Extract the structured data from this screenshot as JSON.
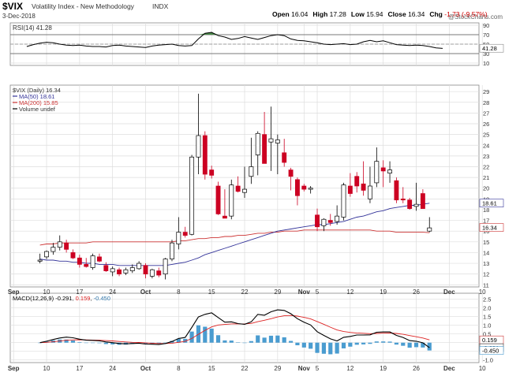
{
  "header": {
    "symbol": "$VIX",
    "name": "Volatility Index - New Methodology",
    "exchange": "INDX",
    "date": "3-Dec-2018",
    "brand": "@StockCharts.com",
    "ohlc": [
      {
        "label": "Open",
        "value": "16.04"
      },
      {
        "label": "High",
        "value": "17.28"
      },
      {
        "label": "Low",
        "value": "15.94"
      },
      {
        "label": "Close",
        "value": "16.34"
      },
      {
        "label": "Chg",
        "value": "-1.73 (-9.57%)",
        "color": "#cc0000"
      }
    ]
  },
  "colors": {
    "up": "#ffffff",
    "down": "#cc0022",
    "ma50": "#333399",
    "ma200": "#cc3333",
    "macd": "#000000",
    "signal": "#dd2222",
    "hist": "#4a9cd0",
    "rsi_fill": "#4a8a4a",
    "grid": "#dddddd"
  },
  "chart_data": [
    {
      "type": "line",
      "panel": "rsi",
      "legend": "RSI(14) 41.28",
      "last_label": "41.28",
      "yticks": [
        10,
        30,
        50,
        70,
        90
      ],
      "ylim": [
        5,
        95
      ],
      "ref_lines": [
        30,
        50,
        70
      ],
      "values": [
        45,
        49,
        52,
        54,
        53,
        50,
        48,
        47,
        48,
        46,
        45,
        45,
        44,
        47,
        48,
        46,
        45,
        44,
        43,
        46,
        48,
        49,
        50,
        47,
        46,
        47,
        61,
        73,
        75,
        68,
        65,
        60,
        62,
        66,
        63,
        60,
        64,
        68,
        70,
        68,
        61,
        58,
        57,
        55,
        53,
        50,
        49,
        50,
        51,
        49,
        50,
        55,
        58,
        55,
        57,
        53,
        49,
        48,
        47,
        48,
        47,
        45,
        42,
        41
      ]
    },
    {
      "type": "candlestick",
      "panel": "price",
      "legend": [
        "$VIX (Daily) 16.34",
        "MA(50) 18.61",
        "MA(200) 15.85",
        "Volume undef"
      ],
      "yticks": [
        11,
        12,
        13,
        14,
        15,
        16,
        17,
        18,
        19,
        20,
        21,
        22,
        23,
        24,
        25,
        26,
        27,
        28,
        29
      ],
      "ylim": [
        10.8,
        29.6
      ],
      "last_labels": [
        {
          "value": 18.61,
          "text": "18.61"
        },
        {
          "value": 16.34,
          "text": "16.34"
        }
      ],
      "candles": [
        {
          "o": 13.2,
          "h": 13.9,
          "l": 13.0,
          "c": 13.3
        },
        {
          "o": 13.6,
          "h": 14.2,
          "l": 13.4,
          "c": 14.1
        },
        {
          "o": 14.1,
          "h": 14.9,
          "l": 13.8,
          "c": 14.5
        },
        {
          "o": 14.5,
          "h": 15.6,
          "l": 14.2,
          "c": 15.0
        },
        {
          "o": 14.9,
          "h": 15.2,
          "l": 14.0,
          "c": 14.3
        },
        {
          "o": 14.0,
          "h": 14.3,
          "l": 13.4,
          "c": 13.5
        },
        {
          "o": 13.5,
          "h": 13.8,
          "l": 12.6,
          "c": 12.9
        },
        {
          "o": 12.9,
          "h": 13.5,
          "l": 12.6,
          "c": 12.7
        },
        {
          "o": 12.6,
          "h": 13.9,
          "l": 12.4,
          "c": 13.7
        },
        {
          "o": 13.6,
          "h": 13.9,
          "l": 13.1,
          "c": 13.2
        },
        {
          "o": 12.8,
          "h": 13.1,
          "l": 12.2,
          "c": 12.3
        },
        {
          "o": 12.2,
          "h": 12.7,
          "l": 11.8,
          "c": 12.5
        },
        {
          "o": 12.4,
          "h": 12.6,
          "l": 11.8,
          "c": 12.0
        },
        {
          "o": 12.1,
          "h": 12.6,
          "l": 11.9,
          "c": 12.4
        },
        {
          "o": 12.3,
          "h": 12.9,
          "l": 12.1,
          "c": 12.6
        },
        {
          "o": 12.5,
          "h": 13.2,
          "l": 12.4,
          "c": 13.0
        },
        {
          "o": 12.8,
          "h": 13.0,
          "l": 11.6,
          "c": 12.0
        },
        {
          "o": 11.8,
          "h": 12.5,
          "l": 11.6,
          "c": 12.4
        },
        {
          "o": 12.3,
          "h": 12.6,
          "l": 11.7,
          "c": 11.9
        },
        {
          "o": 12.0,
          "h": 13.5,
          "l": 11.5,
          "c": 13.4
        },
        {
          "o": 13.4,
          "h": 15.2,
          "l": 13.2,
          "c": 14.9
        },
        {
          "o": 14.8,
          "h": 17.3,
          "l": 14.3,
          "c": 15.9
        },
        {
          "o": 15.9,
          "h": 16.4,
          "l": 15.4,
          "c": 15.6
        },
        {
          "o": 15.7,
          "h": 23.1,
          "l": 15.6,
          "c": 22.9
        },
        {
          "o": 22.9,
          "h": 28.8,
          "l": 21.3,
          "c": 24.9
        },
        {
          "o": 24.9,
          "h": 25.3,
          "l": 20.8,
          "c": 21.3
        },
        {
          "o": 21.7,
          "h": 22.1,
          "l": 20.9,
          "c": 21.2
        },
        {
          "o": 20.2,
          "h": 20.6,
          "l": 17.5,
          "c": 17.6
        },
        {
          "o": 17.4,
          "h": 19.9,
          "l": 17.2,
          "c": 17.2
        },
        {
          "o": 17.4,
          "h": 20.8,
          "l": 17.1,
          "c": 20.3
        },
        {
          "o": 20.2,
          "h": 21.1,
          "l": 19.6,
          "c": 19.7
        },
        {
          "o": 19.6,
          "h": 22.0,
          "l": 19.1,
          "c": 19.9
        },
        {
          "o": 21.1,
          "h": 24.7,
          "l": 20.4,
          "c": 22.0
        },
        {
          "o": 23.1,
          "h": 25.3,
          "l": 21.2,
          "c": 25.1
        },
        {
          "o": 25.0,
          "h": 27.1,
          "l": 22.3,
          "c": 22.3
        },
        {
          "o": 24.3,
          "h": 27.6,
          "l": 21.6,
          "c": 24.6
        },
        {
          "o": 24.2,
          "h": 25.0,
          "l": 21.3,
          "c": 24.5
        },
        {
          "o": 23.3,
          "h": 24.6,
          "l": 22.0,
          "c": 22.4
        },
        {
          "o": 21.7,
          "h": 21.9,
          "l": 19.8,
          "c": 21.1
        },
        {
          "o": 20.8,
          "h": 21.0,
          "l": 18.4,
          "c": 19.3
        },
        {
          "o": 20.2,
          "h": 20.4,
          "l": 19.7,
          "c": 19.9
        },
        {
          "o": 19.9,
          "h": 20.2,
          "l": 19.5,
          "c": 20.0
        },
        {
          "o": 17.5,
          "h": 18.1,
          "l": 16.0,
          "c": 16.4
        },
        {
          "o": 16.5,
          "h": 17.2,
          "l": 16.0,
          "c": 17.1
        },
        {
          "o": 17.0,
          "h": 17.6,
          "l": 16.5,
          "c": 16.8
        },
        {
          "o": 16.9,
          "h": 18.4,
          "l": 16.6,
          "c": 17.4
        },
        {
          "o": 17.3,
          "h": 20.5,
          "l": 17.0,
          "c": 20.3
        },
        {
          "o": 20.2,
          "h": 21.4,
          "l": 19.2,
          "c": 19.5
        },
        {
          "o": 21.1,
          "h": 21.5,
          "l": 19.6,
          "c": 20.2
        },
        {
          "o": 20.4,
          "h": 22.5,
          "l": 19.3,
          "c": 19.8
        },
        {
          "o": 19.0,
          "h": 22.0,
          "l": 18.6,
          "c": 20.2
        },
        {
          "o": 20.5,
          "h": 23.8,
          "l": 20.1,
          "c": 22.5
        },
        {
          "o": 21.9,
          "h": 22.6,
          "l": 20.1,
          "c": 21.6
        },
        {
          "o": 21.4,
          "h": 22.5,
          "l": 20.5,
          "c": 21.7
        },
        {
          "o": 20.7,
          "h": 21.0,
          "l": 18.6,
          "c": 18.9
        },
        {
          "o": 19.0,
          "h": 20.1,
          "l": 18.6,
          "c": 18.9
        },
        {
          "o": 18.9,
          "h": 19.1,
          "l": 18.0,
          "c": 18.1
        },
        {
          "o": 18.3,
          "h": 20.5,
          "l": 17.9,
          "c": 18.5
        },
        {
          "o": 19.5,
          "h": 19.9,
          "l": 18.1,
          "c": 18.1
        },
        {
          "o": 16.0,
          "h": 17.3,
          "l": 15.9,
          "c": 16.3
        }
      ],
      "ma50": [
        13.4,
        13.3,
        13.3,
        13.2,
        13.2,
        13.1,
        13.1,
        13.0,
        13.0,
        12.9,
        12.9,
        12.9,
        12.8,
        12.8,
        12.8,
        12.8,
        12.8,
        12.8,
        12.8,
        12.8,
        12.9,
        13.0,
        13.1,
        13.3,
        13.5,
        13.8,
        14.0,
        14.2,
        14.4,
        14.6,
        14.8,
        15.0,
        15.2,
        15.4,
        15.6,
        15.8,
        16.0,
        16.1,
        16.2,
        16.3,
        16.4,
        16.5,
        16.6,
        16.6,
        16.7,
        16.8,
        16.9,
        17.1,
        17.3,
        17.4,
        17.6,
        17.8,
        17.9,
        18.1,
        18.2,
        18.3,
        18.4,
        18.4,
        18.5,
        18.6
      ],
      "ma200": [
        14.7,
        14.8,
        14.8,
        14.9,
        14.9,
        14.9,
        14.9,
        14.9,
        15.0,
        15.0,
        15.0,
        15.0,
        15.0,
        15.0,
        15.0,
        15.0,
        15.0,
        15.0,
        15.0,
        15.0,
        15.0,
        15.1,
        15.1,
        15.2,
        15.3,
        15.3,
        15.4,
        15.4,
        15.5,
        15.5,
        15.6,
        15.6,
        15.7,
        15.8,
        15.8,
        15.9,
        15.9,
        16.0,
        16.0,
        16.0,
        16.1,
        16.1,
        16.1,
        16.1,
        16.1,
        16.1,
        16.1,
        16.1,
        16.1,
        16.1,
        16.1,
        16.0,
        16.0,
        16.0,
        15.9,
        15.9,
        15.9,
        15.9,
        15.9,
        15.85
      ]
    },
    {
      "type": "line",
      "panel": "macd",
      "legend": {
        "name": "MACD(12,26,9)",
        "macd": "-0.291",
        "signal": "0.159",
        "hist": "-0.450"
      },
      "yticks": [
        -1.0,
        -0.5,
        0.0,
        0.5,
        1.0,
        1.5,
        2.0,
        2.5
      ],
      "yticklabels": [
        "-1.0",
        "-0.5",
        "0.0",
        "0.5",
        "1.0",
        "1.5",
        "2.0",
        "2.5"
      ],
      "ylim": [
        -1.15,
        2.85
      ],
      "last_labels": [
        {
          "value": 0.159,
          "text": "0.159"
        },
        {
          "value": -0.291,
          "text": "-0.291"
        },
        {
          "value": -0.45,
          "text": "-0.450"
        }
      ],
      "macd": [
        0.0,
        0.08,
        0.18,
        0.27,
        0.32,
        0.28,
        0.2,
        0.14,
        0.13,
        0.11,
        0.04,
        0.0,
        -0.05,
        -0.07,
        -0.05,
        -0.03,
        -0.08,
        -0.09,
        -0.11,
        -0.05,
        0.07,
        0.24,
        0.3,
        0.88,
        1.48,
        1.63,
        1.72,
        1.45,
        1.18,
        1.2,
        1.1,
        1.06,
        1.2,
        1.63,
        1.58,
        1.78,
        1.89,
        1.86,
        1.67,
        1.38,
        1.18,
        1.02,
        0.63,
        0.42,
        0.22,
        0.1,
        0.31,
        0.36,
        0.44,
        0.44,
        0.45,
        0.6,
        0.62,
        0.62,
        0.42,
        0.3,
        0.12,
        0.08,
        -0.01,
        -0.29
      ],
      "signal": [
        0.0,
        0.02,
        0.05,
        0.09,
        0.14,
        0.16,
        0.17,
        0.16,
        0.15,
        0.14,
        0.12,
        0.1,
        0.07,
        0.04,
        0.02,
        0.01,
        -0.01,
        -0.03,
        -0.05,
        -0.05,
        -0.03,
        0.02,
        0.08,
        0.24,
        0.48,
        0.71,
        0.91,
        1.02,
        1.05,
        1.08,
        1.08,
        1.08,
        1.11,
        1.21,
        1.29,
        1.38,
        1.48,
        1.55,
        1.57,
        1.53,
        1.46,
        1.37,
        1.22,
        1.06,
        0.89,
        0.73,
        0.64,
        0.59,
        0.56,
        0.54,
        0.52,
        0.53,
        0.55,
        0.56,
        0.53,
        0.48,
        0.41,
        0.34,
        0.27,
        0.16
      ],
      "hist": [
        0.0,
        0.06,
        0.13,
        0.18,
        0.18,
        0.12,
        0.03,
        -0.02,
        -0.02,
        -0.03,
        -0.08,
        -0.1,
        -0.12,
        -0.11,
        -0.07,
        -0.04,
        -0.07,
        -0.06,
        -0.06,
        0.0,
        0.1,
        0.22,
        0.22,
        0.64,
        1.0,
        0.92,
        0.81,
        0.43,
        0.13,
        0.12,
        0.02,
        -0.02,
        0.09,
        0.42,
        0.29,
        0.4,
        0.41,
        0.31,
        0.1,
        -0.15,
        -0.28,
        -0.35,
        -0.59,
        -0.64,
        -0.67,
        -0.63,
        -0.33,
        -0.23,
        -0.12,
        -0.1,
        -0.07,
        0.07,
        0.07,
        0.06,
        -0.11,
        -0.18,
        -0.29,
        -0.26,
        -0.28,
        -0.45
      ]
    }
  ],
  "x_axis": {
    "labels": [
      {
        "text": "Sep",
        "idx": 0,
        "bold": true
      },
      {
        "text": "10",
        "idx": 5
      },
      {
        "text": "17",
        "idx": 10
      },
      {
        "text": "24",
        "idx": 15
      },
      {
        "text": "Oct",
        "idx": 20,
        "bold": true
      },
      {
        "text": "8",
        "idx": 25
      },
      {
        "text": "15",
        "idx": 30
      },
      {
        "text": "22",
        "idx": 35
      },
      {
        "text": "29",
        "idx": 40
      },
      {
        "text": "Nov",
        "idx": 44,
        "bold": true
      },
      {
        "text": "5",
        "idx": 46
      },
      {
        "text": "12",
        "idx": 51
      },
      {
        "text": "19",
        "idx": 56
      },
      {
        "text": "26",
        "idx": 61
      },
      {
        "text": "Dec",
        "idx": 66,
        "bold": true
      },
      {
        "text": "10",
        "idx": 71
      }
    ],
    "candle_index_start": 4
  }
}
